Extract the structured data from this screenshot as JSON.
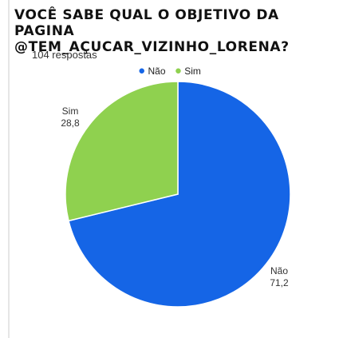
{
  "title_lines": [
    "Você sabe qual o objetivo da pagina",
    "@tem_açucar_vizinho_lorena?"
  ],
  "responses_label": "104 respostas",
  "colors": {
    "nao": "#1565e6",
    "sim": "#8fd14f"
  },
  "chart_data": {
    "type": "pie",
    "title": "Você sabe qual o objetivo da pagina @tem_açucar_vizinho_lorena?",
    "legend_position": "top-center",
    "legend": [
      "Não",
      "Sim"
    ],
    "slices": [
      {
        "label": "Não",
        "value": 71.2,
        "value_text": "71,2",
        "color": "#1565e6"
      },
      {
        "label": "Sim",
        "value": 28.8,
        "value_text": "28,8",
        "color": "#8fd14f"
      }
    ]
  }
}
